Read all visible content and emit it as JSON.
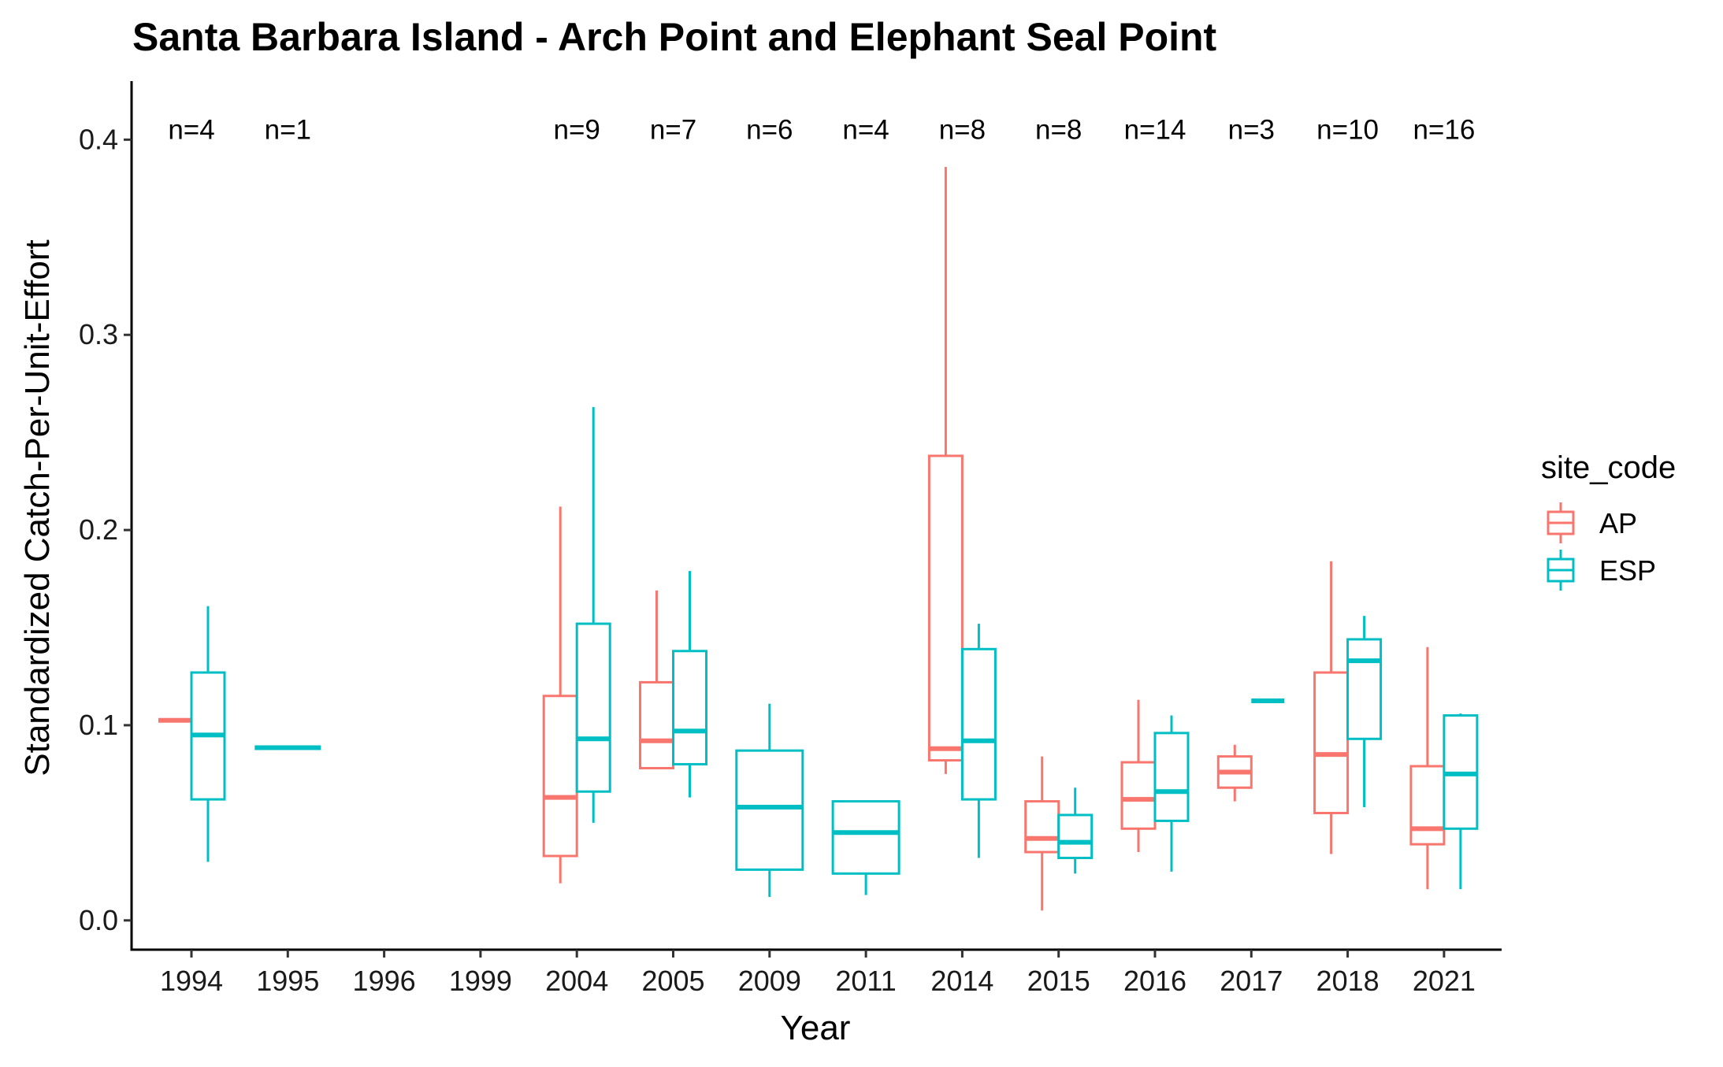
{
  "chart_data": {
    "type": "boxplot",
    "title": "Santa Barbara Island - Arch Point and Elephant Seal Point",
    "xlabel": "Year",
    "ylabel": "Standardized Catch-Per-Unit-Effort",
    "categories": [
      "1994",
      "1995",
      "1996",
      "1999",
      "2004",
      "2005",
      "2009",
      "2011",
      "2014",
      "2015",
      "2016",
      "2017",
      "2018",
      "2021"
    ],
    "ylim": [
      -0.015,
      0.43
    ],
    "y_ticks": [
      0.0,
      0.1,
      0.2,
      0.3,
      0.4
    ],
    "y_tick_labels": [
      "0.0",
      "0.1",
      "0.2",
      "0.3",
      "0.4"
    ],
    "grid": false,
    "legend": {
      "title": "site_code",
      "placement": "right",
      "entries": [
        {
          "label": "AP",
          "color": "#F8766D"
        },
        {
          "label": "ESP",
          "color": "#00BFC4"
        }
      ]
    },
    "annotations": [
      {
        "category": "1994",
        "text": "n=4"
      },
      {
        "category": "1995",
        "text": "n=1"
      },
      {
        "category": "2004",
        "text": "n=9"
      },
      {
        "category": "2005",
        "text": "n=7"
      },
      {
        "category": "2009",
        "text": "n=6"
      },
      {
        "category": "2011",
        "text": "n=4"
      },
      {
        "category": "2014",
        "text": "n=8"
      },
      {
        "category": "2015",
        "text": "n=8"
      },
      {
        "category": "2016",
        "text": "n=14"
      },
      {
        "category": "2017",
        "text": "n=3"
      },
      {
        "category": "2018",
        "text": "n=10"
      },
      {
        "category": "2021",
        "text": "n=16"
      }
    ],
    "annotation_y": 0.4055,
    "series": [
      {
        "name": "AP",
        "color": "#F8766D",
        "boxes": [
          {
            "category": "1994",
            "side": "left",
            "min": 0.1025,
            "q1": 0.1025,
            "median": 0.1025,
            "q3": 0.1025,
            "max": 0.1025
          },
          {
            "category": "2004",
            "side": "left",
            "min": 0.019,
            "q1": 0.033,
            "median": 0.063,
            "q3": 0.115,
            "max": 0.212
          },
          {
            "category": "2005",
            "side": "left",
            "min": 0.078,
            "q1": 0.078,
            "median": 0.092,
            "q3": 0.122,
            "max": 0.169
          },
          {
            "category": "2014",
            "side": "left",
            "min": 0.075,
            "q1": 0.082,
            "median": 0.088,
            "q3": 0.238,
            "max": 0.386
          },
          {
            "category": "2015",
            "side": "left",
            "min": 0.005,
            "q1": 0.035,
            "median": 0.042,
            "q3": 0.061,
            "max": 0.084
          },
          {
            "category": "2016",
            "side": "left",
            "min": 0.035,
            "q1": 0.047,
            "median": 0.062,
            "q3": 0.081,
            "max": 0.113
          },
          {
            "category": "2017",
            "side": "left",
            "min": 0.061,
            "q1": 0.068,
            "median": 0.076,
            "q3": 0.084,
            "max": 0.09
          },
          {
            "category": "2018",
            "side": "left",
            "min": 0.034,
            "q1": 0.055,
            "median": 0.085,
            "q3": 0.127,
            "max": 0.184
          },
          {
            "category": "2021",
            "side": "left",
            "min": 0.016,
            "q1": 0.039,
            "median": 0.047,
            "q3": 0.079,
            "max": 0.14
          }
        ]
      },
      {
        "name": "ESP",
        "color": "#00BFC4",
        "boxes": [
          {
            "category": "1994",
            "side": "right",
            "min": 0.03,
            "q1": 0.062,
            "median": 0.095,
            "q3": 0.127,
            "max": 0.161
          },
          {
            "category": "1995",
            "side": "full",
            "min": 0.0885,
            "q1": 0.0885,
            "median": 0.0885,
            "q3": 0.0885,
            "max": 0.0885
          },
          {
            "category": "2004",
            "side": "right",
            "min": 0.05,
            "q1": 0.066,
            "median": 0.093,
            "q3": 0.152,
            "max": 0.263
          },
          {
            "category": "2005",
            "side": "right",
            "min": 0.063,
            "q1": 0.08,
            "median": 0.097,
            "q3": 0.138,
            "max": 0.179
          },
          {
            "category": "2009",
            "side": "full",
            "min": 0.012,
            "q1": 0.026,
            "median": 0.058,
            "q3": 0.087,
            "max": 0.111
          },
          {
            "category": "2011",
            "side": "full",
            "min": 0.013,
            "q1": 0.024,
            "median": 0.045,
            "q3": 0.061,
            "max": 0.061
          },
          {
            "category": "2014",
            "side": "right",
            "min": 0.032,
            "q1": 0.062,
            "median": 0.092,
            "q3": 0.139,
            "max": 0.152
          },
          {
            "category": "2015",
            "side": "right",
            "min": 0.024,
            "q1": 0.032,
            "median": 0.04,
            "q3": 0.054,
            "max": 0.068
          },
          {
            "category": "2016",
            "side": "right",
            "min": 0.025,
            "q1": 0.051,
            "median": 0.066,
            "q3": 0.096,
            "max": 0.105
          },
          {
            "category": "2017",
            "side": "right",
            "min": 0.1125,
            "q1": 0.1125,
            "median": 0.1125,
            "q3": 0.1125,
            "max": 0.1125
          },
          {
            "category": "2018",
            "side": "right",
            "min": 0.058,
            "q1": 0.093,
            "median": 0.133,
            "q3": 0.144,
            "max": 0.156
          },
          {
            "category": "2021",
            "side": "right",
            "min": 0.016,
            "q1": 0.047,
            "median": 0.075,
            "q3": 0.105,
            "max": 0.106
          }
        ]
      }
    ]
  }
}
